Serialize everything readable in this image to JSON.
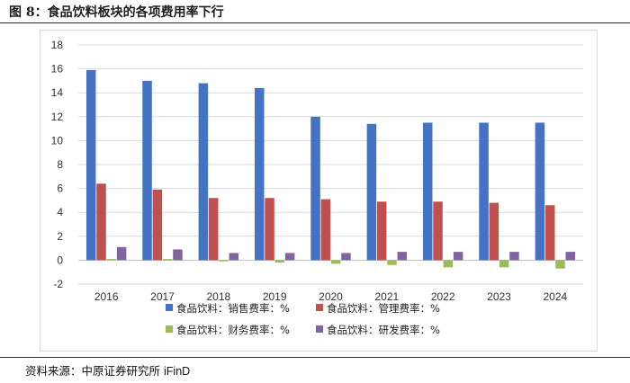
{
  "figure": {
    "title": "图 8：食品饮料板块的各项费用率下行",
    "source": "资料来源：中原证券研究所",
    "source_brand": "iFinD"
  },
  "colors": {
    "sales": "#4472C4",
    "admin": "#C0504D",
    "finance": "#9BBB59",
    "rd": "#8064A2",
    "grid": "#d9d9d9",
    "axis": "#bfbfbf"
  },
  "chart_data": {
    "type": "bar",
    "categories": [
      "2016",
      "2017",
      "2018",
      "2019",
      "2020",
      "2021",
      "2022",
      "2023",
      "2024"
    ],
    "ylim": [
      -2,
      18
    ],
    "yticks": [
      -2,
      0,
      2,
      4,
      6,
      8,
      10,
      12,
      14,
      16,
      18
    ],
    "grid": true,
    "legend_position": "bottom",
    "series": [
      {
        "name": "食品饮料：销售费率：%",
        "color_key": "sales",
        "values": [
          15.9,
          15.0,
          14.8,
          14.4,
          12.0,
          11.4,
          11.5,
          11.5,
          11.5
        ]
      },
      {
        "name": "食品饮料：管理费率：%",
        "color_key": "admin",
        "values": [
          6.4,
          5.9,
          5.2,
          5.2,
          5.1,
          4.9,
          4.9,
          4.8,
          4.6
        ]
      },
      {
        "name": "食品饮料：财务费率：%",
        "color_key": "finance",
        "values": [
          0.1,
          0.1,
          -0.1,
          -0.2,
          -0.3,
          -0.4,
          -0.6,
          -0.6,
          -0.7
        ]
      },
      {
        "name": "食品饮料：研发费率：%",
        "color_key": "rd",
        "values": [
          1.1,
          0.9,
          0.6,
          0.6,
          0.6,
          0.7,
          0.7,
          0.7,
          0.7
        ]
      }
    ]
  }
}
